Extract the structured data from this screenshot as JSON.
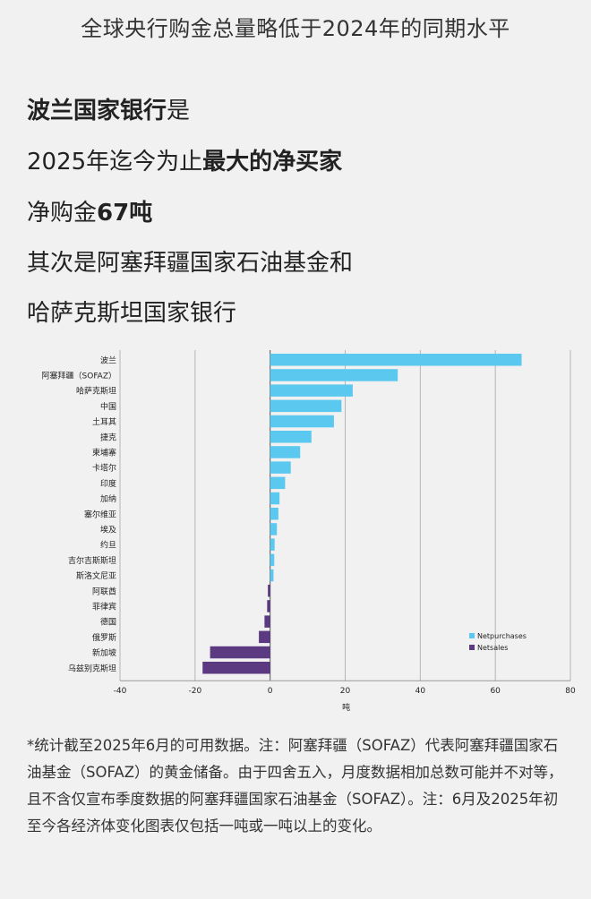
{
  "header": {
    "title": "全球央行购金总量略低于2024年的同期水平"
  },
  "headline": {
    "line1_bold": "波兰国家银行",
    "line1_rest": "是",
    "line2_pre": "2025年迄今为止",
    "line2_bold": "最大的净买家",
    "line3_pre": "净购金",
    "line3_bold": "67吨",
    "line4": "其次是阿塞拜疆国家石油基金和",
    "line5": "哈萨克斯坦国家银行"
  },
  "chart_data": {
    "type": "bar",
    "orientation": "horizontal",
    "xlabel": "吨",
    "xlim": [
      -40,
      80
    ],
    "xticks": [
      -40,
      -20,
      0,
      20,
      40,
      60,
      80
    ],
    "grid": true,
    "legend_position": "bottom-right",
    "categories": [
      "波兰",
      "阿塞拜疆（SOFAZ）",
      "哈萨克斯坦",
      "中国",
      "土耳其",
      "捷克",
      "柬埔寨",
      "卡塔尔",
      "印度",
      "加纳",
      "塞尔维亚",
      "埃及",
      "约旦",
      "吉尔吉斯斯坦",
      "斯洛文尼亚",
      "阿联酋",
      "菲律宾",
      "德国",
      "俄罗斯",
      "新加坡",
      "乌兹别克斯坦"
    ],
    "values": [
      67,
      34,
      22,
      19,
      17,
      11,
      8,
      5.5,
      4,
      2.5,
      2.2,
      1.8,
      1.2,
      1.1,
      0.9,
      -0.6,
      -0.8,
      -1.5,
      -3,
      -16,
      -18
    ],
    "series": [
      {
        "name": "Netpurchases",
        "color": "#5bc8f0"
      },
      {
        "name": "Netsales",
        "color": "#5c3a82"
      }
    ]
  },
  "footnote": "*统计截至2025年6月的可用数据。注：阿塞拜疆（SOFAZ）代表阿塞拜疆国家石油基金（SOFAZ）的黄金储备。由于四舍五入，月度数据相加总数可能并不对等，且不含仅宣布季度数据的阿塞拜疆国家石油基金（SOFAZ）。注：6月及2025年初至今各经济体变化图表仅包括一吨或一吨以上的变化。"
}
